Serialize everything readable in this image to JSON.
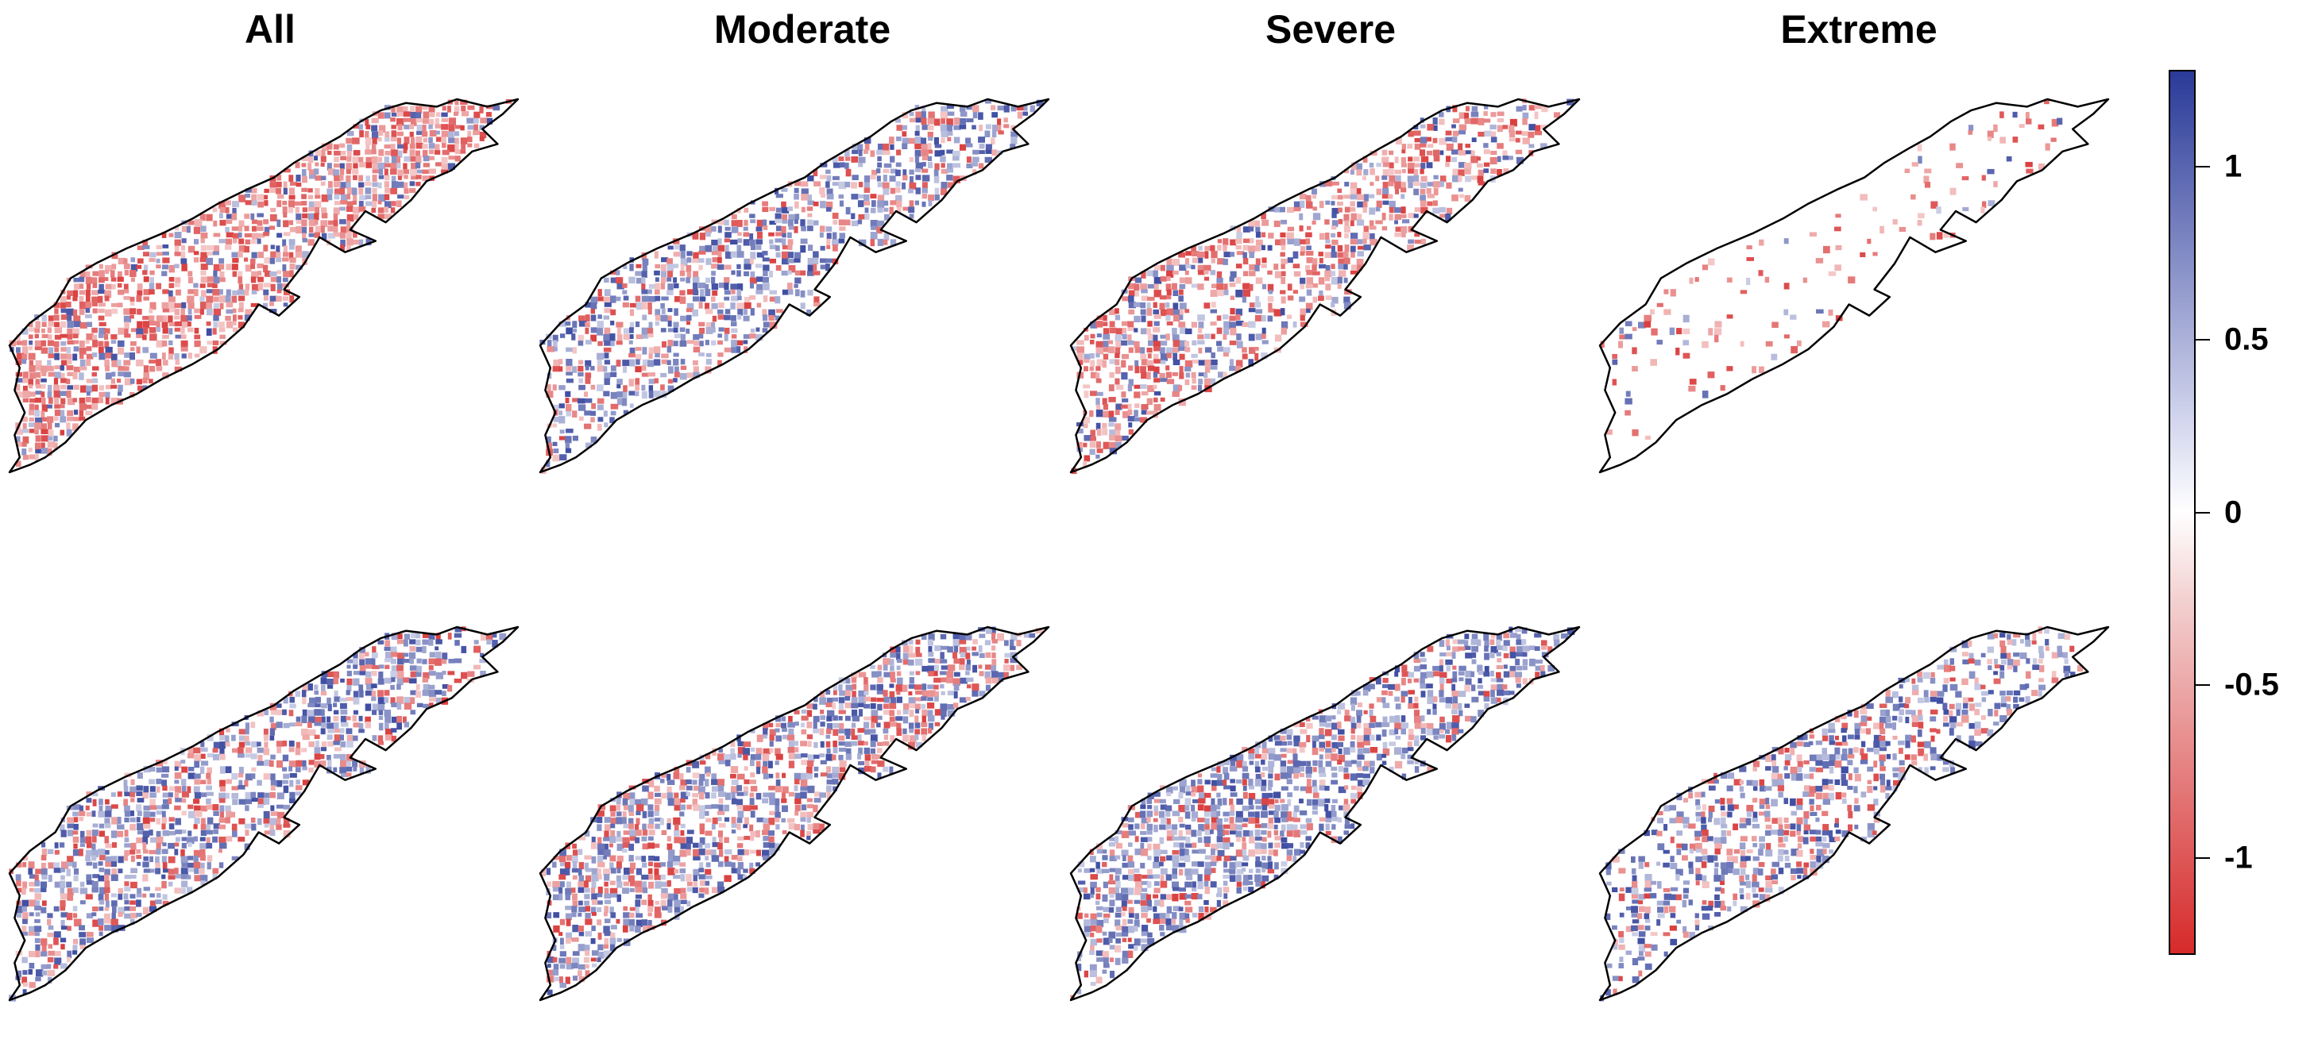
{
  "columns": [
    {
      "label": "All"
    },
    {
      "label": "Moderate"
    },
    {
      "label": "Severe"
    },
    {
      "label": "Extreme"
    }
  ],
  "maps": [
    {
      "row": 1,
      "col": "All",
      "dominant": "red",
      "coverage": 0.92,
      "redshare": 0.75,
      "wv": [
        0.55,
        0.45,
        0.35,
        0.3,
        0.35,
        0.45,
        0.55,
        0.6,
        0.55,
        0.45
      ]
    },
    {
      "row": 1,
      "col": "Moderate",
      "dominant": "blue",
      "coverage": 0.72,
      "redshare": 0.4,
      "wv": [
        0.35,
        0.45,
        0.55,
        0.6,
        0.55,
        0.4,
        0.4,
        0.5,
        0.55,
        0.5
      ]
    },
    {
      "row": 1,
      "col": "Severe",
      "dominant": "red",
      "coverage": 0.72,
      "redshare": 0.65,
      "wv": [
        0.6,
        0.55,
        0.45,
        0.4,
        0.45,
        0.5,
        0.55,
        0.45,
        0.35,
        0.3
      ]
    },
    {
      "row": 1,
      "col": "Extreme",
      "dominant": "red",
      "coverage": 0.18,
      "redshare": 0.85,
      "wv": [
        0.2,
        0.25,
        0.1,
        0.05,
        0.05,
        0.05,
        0.1,
        0.05,
        0.05,
        0.05
      ]
    },
    {
      "row": 2,
      "col": "All",
      "dominant": "blue",
      "coverage": 0.78,
      "redshare": 0.4,
      "wv": [
        0.45,
        0.5,
        0.55,
        0.5,
        0.35,
        0.45,
        0.6,
        0.55,
        0.45,
        0.35
      ]
    },
    {
      "row": 2,
      "col": "Moderate",
      "dominant": "blue",
      "coverage": 0.8,
      "redshare": 0.45,
      "wv": [
        0.5,
        0.55,
        0.5,
        0.45,
        0.45,
        0.55,
        0.6,
        0.55,
        0.5,
        0.4
      ]
    },
    {
      "row": 2,
      "col": "Severe",
      "dominant": "blue",
      "coverage": 0.8,
      "redshare": 0.3,
      "wv": [
        0.45,
        0.5,
        0.55,
        0.6,
        0.55,
        0.5,
        0.45,
        0.5,
        0.55,
        0.45
      ]
    },
    {
      "row": 2,
      "col": "Extreme",
      "dominant": "blue",
      "coverage": 0.62,
      "redshare": 0.35,
      "wv": [
        0.2,
        0.3,
        0.45,
        0.55,
        0.6,
        0.55,
        0.45,
        0.35,
        0.3,
        0.25
      ]
    }
  ],
  "colorbar": {
    "min": -1.28,
    "max": 1.28,
    "low_color": "#d62a2a",
    "mid_color": "#ffffff",
    "high_color": "#2a3a98",
    "ticks": [
      {
        "label": "1",
        "value": 1
      },
      {
        "label": "0.5",
        "value": 0.5
      },
      {
        "label": "0",
        "value": 0
      },
      {
        "label": "-0.5",
        "value": -0.5
      },
      {
        "label": "-1",
        "value": -1
      }
    ]
  }
}
